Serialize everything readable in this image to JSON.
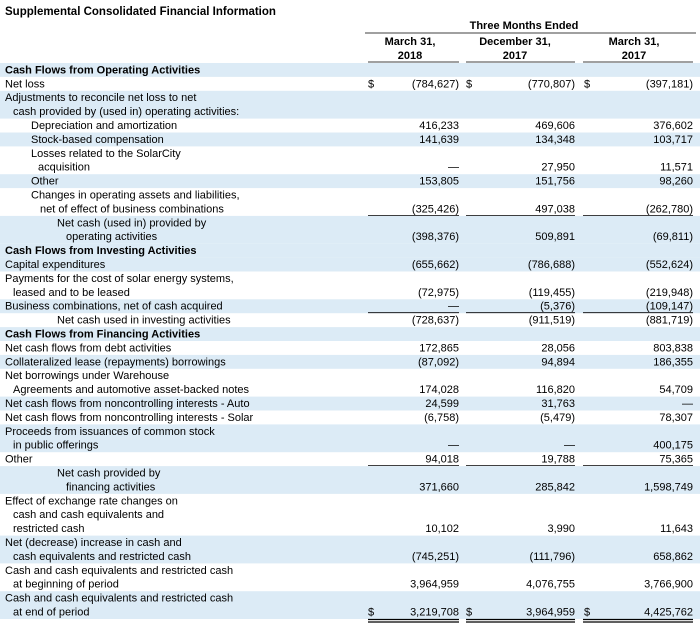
{
  "title": "Supplemental Consolidated Financial Information",
  "header": {
    "group": "Three Months Ended",
    "columns": [
      [
        "March 31,",
        "2018"
      ],
      [
        "December 31,",
        "2017"
      ],
      [
        "March 31,",
        "2017"
      ]
    ]
  },
  "rows": [
    {
      "heading": "Cash Flows from Operating Activities"
    },
    {
      "label": [
        "Net loss"
      ],
      "currency": "$",
      "values": [
        "(784,627)",
        "(770,807)",
        "(397,181)"
      ]
    },
    {
      "label": [
        "Adjustments to reconcile net loss to net",
        "cash provided by (used in) operating activities:"
      ]
    },
    {
      "label": [
        "Depreciation and amortization"
      ],
      "values": [
        "416,233",
        "469,606",
        "376,602"
      ]
    },
    {
      "label": [
        "Stock-based compensation"
      ],
      "values": [
        "141,639",
        "134,348",
        "103,717"
      ]
    },
    {
      "label": [
        "Losses related to the SolarCity",
        "acquisition"
      ],
      "values": [
        "—",
        "27,950",
        "11,571"
      ]
    },
    {
      "label": [
        "Other"
      ],
      "values": [
        "153,805",
        "151,756",
        "98,260"
      ]
    },
    {
      "label": [
        "Changes in operating assets and liabilities,",
        "net of effect of business combinations"
      ],
      "values": [
        "(325,426)",
        "497,038",
        "(262,780)"
      ]
    },
    {
      "label": [
        "Net cash (used in) provided by",
        "operating activities"
      ],
      "values": [
        "(398,376)",
        "509,891",
        "(69,811)"
      ]
    },
    {
      "heading": "Cash Flows from Investing Activities"
    },
    {
      "label": [
        "Capital expenditures"
      ],
      "values": [
        "(655,662)",
        "(786,688)",
        "(552,624)"
      ]
    },
    {
      "label": [
        "Payments for the cost of solar energy systems,",
        "leased and to be leased"
      ],
      "values": [
        "(72,975)",
        "(119,455)",
        "(219,948)"
      ]
    },
    {
      "label": [
        "Business combinations, net of cash acquired"
      ],
      "values": [
        "—",
        "(5,376)",
        "(109,147)"
      ]
    },
    {
      "label": [
        "Net cash used in investing activities"
      ],
      "values": [
        "(728,637)",
        "(911,519)",
        "(881,719)"
      ]
    },
    {
      "heading": "Cash Flows from Financing Activities"
    },
    {
      "label": [
        "Net cash flows from debt activities"
      ],
      "values": [
        "172,865",
        "28,056",
        "803,838"
      ]
    },
    {
      "label": [
        "Collateralized lease (repayments) borrowings"
      ],
      "values": [
        "(87,092)",
        "94,894",
        "186,355"
      ]
    },
    {
      "label": [
        "Net borrowings under Warehouse",
        "Agreements and automotive asset-backed notes"
      ],
      "values": [
        "174,028",
        "116,820",
        "54,709"
      ]
    },
    {
      "label": [
        "Net cash flows from noncontrolling interests - Auto"
      ],
      "values": [
        "24,599",
        "31,763",
        "—"
      ]
    },
    {
      "label": [
        "Net cash flows from noncontrolling interests - Solar"
      ],
      "values": [
        "(6,758)",
        "(5,479)",
        "78,307"
      ]
    },
    {
      "label": [
        "Proceeds from issuances of common stock",
        "in public offerings"
      ],
      "values": [
        "—",
        "—",
        "400,175"
      ]
    },
    {
      "label": [
        "Other"
      ],
      "values": [
        "94,018",
        "19,788",
        "75,365"
      ]
    },
    {
      "label": [
        "Net cash provided by",
        "financing activities"
      ],
      "values": [
        "371,660",
        "285,842",
        "1,598,749"
      ]
    },
    {
      "label": [
        "Effect of exchange rate changes on",
        "cash and cash equivalents and",
        "restricted cash"
      ],
      "values": [
        "10,102",
        "3,990",
        "11,643"
      ]
    },
    {
      "label": [
        "Net (decrease) increase in cash and",
        "cash equivalents and restricted cash"
      ],
      "values": [
        "(745,251)",
        "(111,796)",
        "658,862"
      ]
    },
    {
      "label": [
        "Cash and cash equivalents and restricted cash",
        "at beginning of period"
      ],
      "values": [
        "3,964,959",
        "4,076,755",
        "3,766,900"
      ]
    },
    {
      "label": [
        "Cash and cash equivalents and restricted cash",
        "at end of period"
      ],
      "currency": "$",
      "values": [
        "3,219,708",
        "3,964,959",
        "4,425,762"
      ]
    }
  ]
}
